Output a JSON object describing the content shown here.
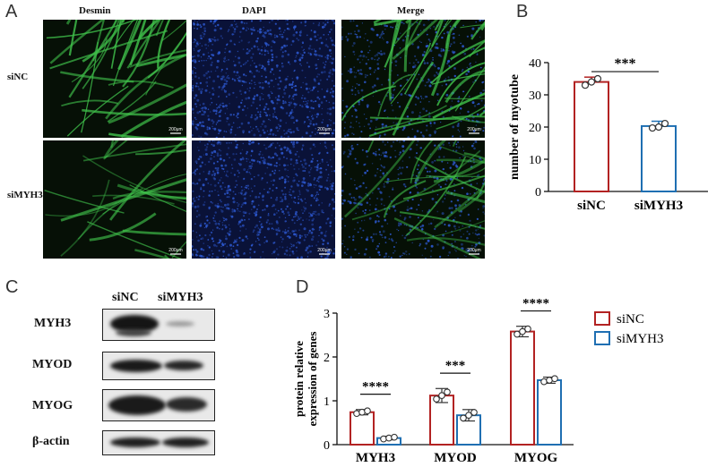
{
  "panel_letters": {
    "a": "A",
    "b": "B",
    "c": "C",
    "d": "D"
  },
  "panel_a": {
    "column_headers": [
      "Desmin",
      "DAPI",
      "Merge"
    ],
    "row_labels": [
      "siNC",
      "siMYH3"
    ],
    "scale_bar_label": "200μm"
  },
  "panel_c": {
    "lane_labels": [
      "siNC",
      "siMYH3"
    ],
    "row_labels": [
      "MYH3",
      "MYOD",
      "MYOG",
      "β-actin"
    ]
  },
  "colors": {
    "siNC": "#b22222",
    "siMYH3": "#1f6fb2",
    "desmin_green": "#3fbf4a",
    "dapi_blue": "#2e5bd6"
  },
  "chart_data": [
    {
      "type": "bar",
      "panel": "B",
      "categories": [
        "siNC",
        "siMYH3"
      ],
      "values": [
        34,
        20.3
      ],
      "errors": [
        1.5,
        1.5
      ],
      "points": [
        [
          33,
          34,
          35
        ],
        [
          19.7,
          20,
          21.1
        ]
      ],
      "ylabel": "number of myotube",
      "ylim": [
        0,
        40
      ],
      "yticks": [
        0,
        10,
        20,
        30,
        40
      ],
      "significance": "***"
    },
    {
      "type": "bar",
      "panel": "D",
      "categories": [
        "MYH3",
        "MYOD",
        "MYOG"
      ],
      "series": [
        {
          "name": "siNC",
          "values": [
            0.74,
            1.12,
            2.58
          ],
          "errors": [
            0.06,
            0.16,
            0.12
          ]
        },
        {
          "name": "siMYH3",
          "values": [
            0.15,
            0.67,
            1.47
          ],
          "errors": [
            0.04,
            0.13,
            0.07
          ]
        }
      ],
      "ylabel": "protein relative expression of genes",
      "ylabel_lines": [
        "protein relative",
        "expression of genes"
      ],
      "ylim": [
        0,
        3
      ],
      "yticks": [
        0,
        1,
        2,
        3
      ],
      "significance": [
        "****",
        "***",
        "****"
      ],
      "legend_position": "right"
    }
  ]
}
